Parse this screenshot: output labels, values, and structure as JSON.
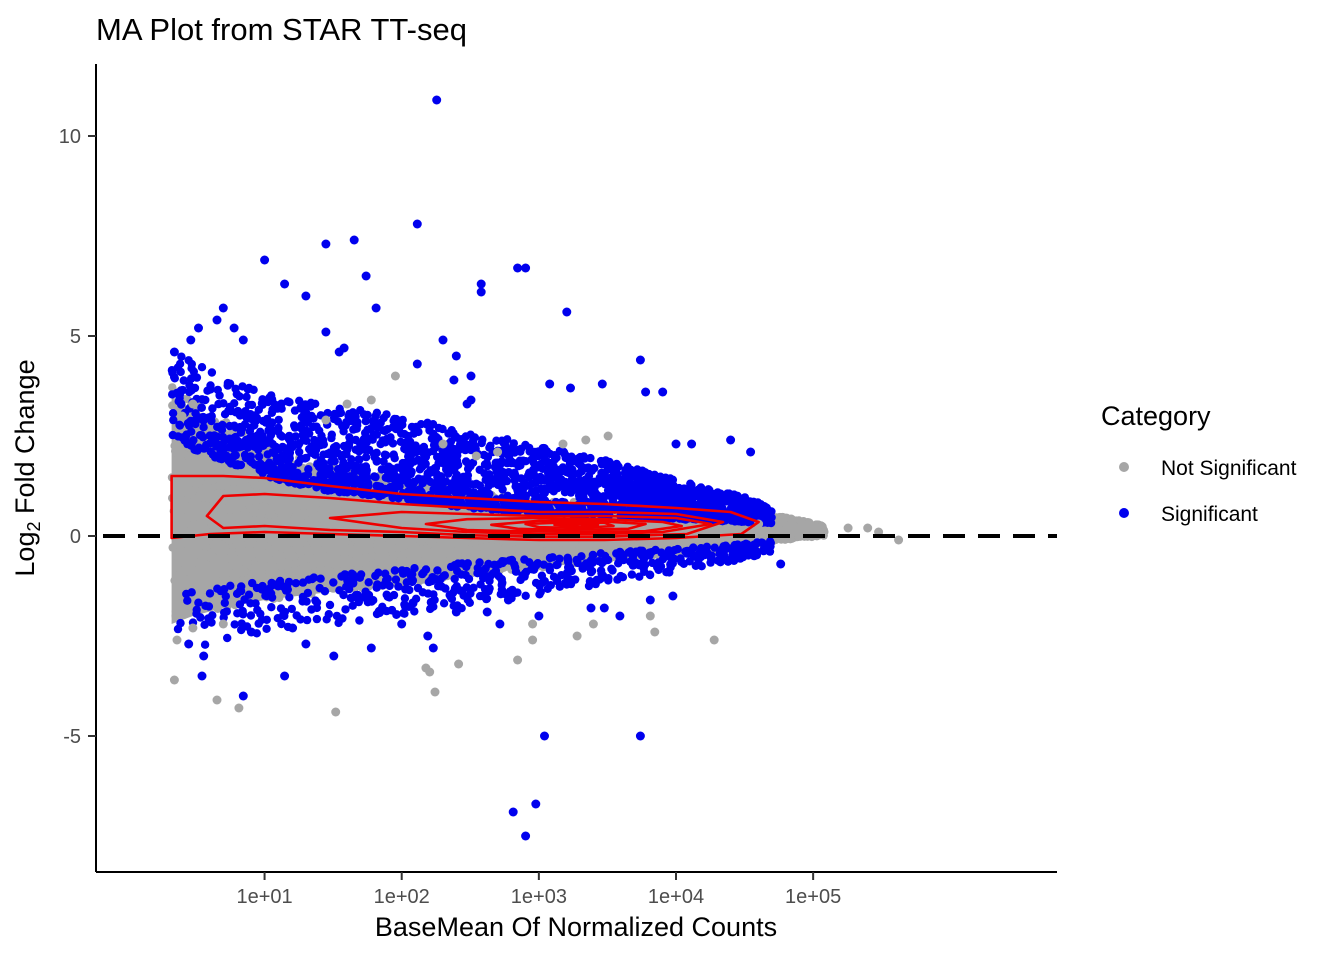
{
  "chart_data": {
    "type": "scatter",
    "title": "MA Plot from STAR TT-seq",
    "xlabel": "BaseMean Of Normalized Counts",
    "ylabel_prefix": "Log",
    "ylabel_subscript": "2",
    "ylabel_suffix": " Fold Change",
    "x_scale": "log10",
    "xlim": [
      0.6,
      6000000
    ],
    "ylim": [
      -8.4,
      11.8
    ],
    "x_ticks": [
      10,
      100,
      1000,
      10000,
      100000
    ],
    "x_tick_labels": [
      "1e+01",
      "1e+02",
      "1e+03",
      "1e+04",
      "1e+05"
    ],
    "y_ticks": [
      10,
      5,
      0,
      -5
    ],
    "y_tick_labels": [
      "10",
      "5",
      "0",
      "-5"
    ],
    "reference_line": {
      "y": 0,
      "style": "dashed",
      "color": "#000000"
    },
    "grid": false,
    "legend": {
      "title": "Category",
      "position": "right",
      "entries": [
        {
          "label": "Not Significant",
          "color": "#a6a6a6"
        },
        {
          "label": "Significant",
          "color": "#0000ee"
        }
      ]
    },
    "series": [
      {
        "name": "Not Significant",
        "color": "#a6a6a6",
        "points": [
          [
            2.2,
            -3.6
          ],
          [
            4.5,
            -4.1
          ],
          [
            6.5,
            -4.3
          ],
          [
            33,
            -4.4
          ],
          [
            160,
            -3.4
          ],
          [
            175,
            -3.9
          ],
          [
            150,
            -3.3
          ],
          [
            260,
            -3.2
          ],
          [
            900,
            -2.6
          ],
          [
            1900,
            -2.5
          ],
          [
            7000,
            -2.4
          ],
          [
            19000,
            -2.6
          ],
          [
            6500,
            -2.0
          ],
          [
            900,
            -2.2
          ],
          [
            700,
            -3.1
          ],
          [
            2500,
            -2.2
          ],
          [
            28,
            2.9
          ],
          [
            40,
            3.3
          ],
          [
            60,
            3.4
          ],
          [
            90,
            4.0
          ],
          [
            200,
            2.3
          ],
          [
            350,
            2.0
          ],
          [
            500,
            2.1
          ],
          [
            2200,
            2.4
          ],
          [
            3200,
            2.5
          ],
          [
            1500,
            2.3
          ],
          [
            40000,
            0.3
          ],
          [
            60000,
            0.4
          ],
          [
            90000,
            0.2
          ],
          [
            120000,
            0.1
          ],
          [
            180000,
            0.2
          ],
          [
            250000,
            0.2
          ],
          [
            420000,
            -0.1
          ],
          [
            300000,
            0.1
          ],
          [
            3,
            3.3
          ],
          [
            2.5,
            3.0
          ],
          [
            2.3,
            -2.6
          ],
          [
            3,
            -2.3
          ],
          [
            5,
            -2.2
          ]
        ],
        "cloud": {
          "description": "dense non-significant cloud around zero",
          "upper_envelope": [
            [
              2.1,
              3.5
            ],
            [
              3,
              3.1
            ],
            [
              5,
              2.7
            ],
            [
              10,
              2.1
            ],
            [
              30,
              1.6
            ],
            [
              100,
              1.3
            ],
            [
              300,
              1.0
            ],
            [
              1000,
              0.8
            ],
            [
              3000,
              0.75
            ],
            [
              10000,
              0.6
            ],
            [
              30000,
              0.5
            ],
            [
              60000,
              0.45
            ],
            [
              120000,
              0.25
            ]
          ],
          "lower_envelope": [
            [
              2.1,
              -2.2
            ],
            [
              3,
              -2.0
            ],
            [
              5,
              -1.8
            ],
            [
              10,
              -1.6
            ],
            [
              30,
              -1.4
            ],
            [
              100,
              -1.2
            ],
            [
              300,
              -0.95
            ],
            [
              1000,
              -0.8
            ],
            [
              3000,
              -0.6
            ],
            [
              10000,
              -0.45
            ],
            [
              30000,
              -0.3
            ],
            [
              60000,
              -0.1
            ],
            [
              120000,
              0.0
            ]
          ]
        }
      },
      {
        "name": "Significant",
        "color": "#0000ee",
        "points": [
          [
            180,
            10.9
          ],
          [
            130,
            7.8
          ],
          [
            28,
            7.3
          ],
          [
            45,
            7.4
          ],
          [
            10,
            6.9
          ],
          [
            14,
            6.3
          ],
          [
            20,
            6.0
          ],
          [
            55,
            6.5
          ],
          [
            65,
            5.7
          ],
          [
            700,
            6.7
          ],
          [
            800,
            6.7
          ],
          [
            380,
            6.3
          ],
          [
            380,
            6.1
          ],
          [
            1600,
            5.6
          ],
          [
            5500,
            4.4
          ],
          [
            6000,
            3.6
          ],
          [
            8000,
            3.6
          ],
          [
            5,
            5.7
          ],
          [
            3.3,
            5.2
          ],
          [
            4.5,
            5.4
          ],
          [
            2.2,
            4.6
          ],
          [
            2.9,
            4.9
          ],
          [
            6,
            5.2
          ],
          [
            7,
            4.9
          ],
          [
            28,
            5.1
          ],
          [
            35,
            4.6
          ],
          [
            38,
            4.7
          ],
          [
            130,
            4.3
          ],
          [
            200,
            4.9
          ],
          [
            240,
            3.9
          ],
          [
            250,
            4.5
          ],
          [
            300,
            3.3
          ],
          [
            320,
            3.4
          ],
          [
            320,
            4.0
          ],
          [
            1200,
            3.8
          ],
          [
            1700,
            3.7
          ],
          [
            2900,
            3.8
          ],
          [
            10000,
            2.3
          ],
          [
            13000,
            2.3
          ],
          [
            25000,
            2.4
          ],
          [
            35000,
            2.1
          ],
          [
            1100,
            -5.0
          ],
          [
            5500,
            -5.0
          ],
          [
            650,
            -6.9
          ],
          [
            950,
            -6.7
          ],
          [
            800,
            -7.5
          ],
          [
            520,
            -2.2
          ],
          [
            1000,
            -2.0
          ],
          [
            2400,
            -1.8
          ],
          [
            3900,
            -2.0
          ],
          [
            3000,
            -1.8
          ],
          [
            6500,
            -1.6
          ],
          [
            9500,
            -1.5
          ],
          [
            58000,
            -0.7
          ],
          [
            2.8,
            -2.7
          ],
          [
            3.6,
            -3.0
          ],
          [
            3.5,
            -3.5
          ],
          [
            7,
            -4.0
          ],
          [
            14,
            -3.5
          ],
          [
            32,
            -3.0
          ],
          [
            60,
            -2.8
          ],
          [
            20,
            -2.7
          ],
          [
            16,
            -2.3
          ],
          [
            8,
            -2.4
          ],
          [
            100,
            -2.2
          ],
          [
            155,
            -2.5
          ],
          [
            170,
            -2.8
          ],
          [
            250,
            -1.9
          ],
          [
            420,
            -1.9
          ],
          [
            600,
            -1.6
          ]
        ],
        "band": {
          "description": "significant points fringing the cloud",
          "upper_outer": [
            [
              2.1,
              4.6
            ],
            [
              3,
              4.4
            ],
            [
              5,
              4.0
            ],
            [
              10,
              3.6
            ],
            [
              30,
              3.3
            ],
            [
              100,
              3.0
            ],
            [
              300,
              2.6
            ],
            [
              1000,
              2.3
            ],
            [
              3000,
              1.9
            ],
            [
              10000,
              1.4
            ],
            [
              30000,
              1.0
            ],
            [
              50000,
              0.7
            ]
          ],
          "lower_outer": [
            [
              2.1,
              -2.8
            ],
            [
              3,
              -2.8
            ],
            [
              5,
              -2.6
            ],
            [
              10,
              -2.4
            ],
            [
              30,
              -2.2
            ],
            [
              100,
              -2.0
            ],
            [
              300,
              -1.8
            ],
            [
              1000,
              -1.5
            ],
            [
              3000,
              -1.2
            ],
            [
              10000,
              -0.9
            ],
            [
              30000,
              -0.6
            ],
            [
              50000,
              -0.4
            ]
          ]
        }
      }
    ],
    "density_contours": {
      "color": "#ee0000",
      "levels": [
        [
          [
            2.1,
            1.5
          ],
          [
            5,
            1.5
          ],
          [
            10,
            1.45
          ],
          [
            30,
            1.25
          ],
          [
            100,
            1.05
          ],
          [
            300,
            0.95
          ],
          [
            1000,
            0.85
          ],
          [
            3000,
            0.8
          ],
          [
            10000,
            0.7
          ],
          [
            25000,
            0.6
          ],
          [
            40000,
            0.35
          ],
          [
            30000,
            0.05
          ],
          [
            10000,
            -0.05
          ],
          [
            3000,
            -0.1
          ],
          [
            1000,
            -0.1
          ],
          [
            300,
            -0.05
          ],
          [
            100,
            0
          ],
          [
            30,
            0.05
          ],
          [
            10,
            0.1
          ],
          [
            4,
            0.05
          ],
          [
            2.1,
            -0.05
          ],
          [
            2.1,
            0.7
          ],
          [
            2.1,
            1.5
          ]
        ],
        [
          [
            3.8,
            0.5
          ],
          [
            5,
            1.0
          ],
          [
            10,
            1.05
          ],
          [
            30,
            0.95
          ],
          [
            100,
            0.8
          ],
          [
            300,
            0.7
          ],
          [
            1000,
            0.6
          ],
          [
            3000,
            0.6
          ],
          [
            10000,
            0.55
          ],
          [
            22000,
            0.35
          ],
          [
            12000,
            0.05
          ],
          [
            3000,
            -0.02
          ],
          [
            1000,
            -0.02
          ],
          [
            300,
            0.02
          ],
          [
            100,
            0.1
          ],
          [
            30,
            0.15
          ],
          [
            10,
            0.25
          ],
          [
            5,
            0.2
          ],
          [
            3.8,
            0.5
          ]
        ],
        [
          [
            30,
            0.45
          ],
          [
            100,
            0.6
          ],
          [
            300,
            0.55
          ],
          [
            1000,
            0.5
          ],
          [
            3000,
            0.5
          ],
          [
            10000,
            0.45
          ],
          [
            18000,
            0.3
          ],
          [
            8000,
            0.1
          ],
          [
            3000,
            0.05
          ],
          [
            1000,
            0.05
          ],
          [
            300,
            0.1
          ],
          [
            100,
            0.2
          ],
          [
            30,
            0.45
          ]
        ],
        [
          [
            150,
            0.3
          ],
          [
            300,
            0.42
          ],
          [
            1000,
            0.45
          ],
          [
            3000,
            0.42
          ],
          [
            8000,
            0.35
          ],
          [
            11000,
            0.25
          ],
          [
            6000,
            0.12
          ],
          [
            2000,
            0.1
          ],
          [
            700,
            0.12
          ],
          [
            300,
            0.15
          ],
          [
            150,
            0.3
          ]
        ],
        [
          [
            450,
            0.28
          ],
          [
            1000,
            0.38
          ],
          [
            2500,
            0.38
          ],
          [
            6000,
            0.3
          ],
          [
            4500,
            0.18
          ],
          [
            1500,
            0.15
          ],
          [
            700,
            0.18
          ],
          [
            450,
            0.28
          ]
        ],
        [
          [
            800,
            0.3
          ],
          [
            1500,
            0.34
          ],
          [
            3000,
            0.33
          ],
          [
            3500,
            0.25
          ],
          [
            2000,
            0.2
          ],
          [
            1000,
            0.22
          ],
          [
            800,
            0.3
          ]
        ],
        [
          [
            1300,
            0.28
          ],
          [
            2000,
            0.31
          ],
          [
            2700,
            0.28
          ],
          [
            2000,
            0.24
          ],
          [
            1300,
            0.28
          ]
        ]
      ]
    }
  }
}
